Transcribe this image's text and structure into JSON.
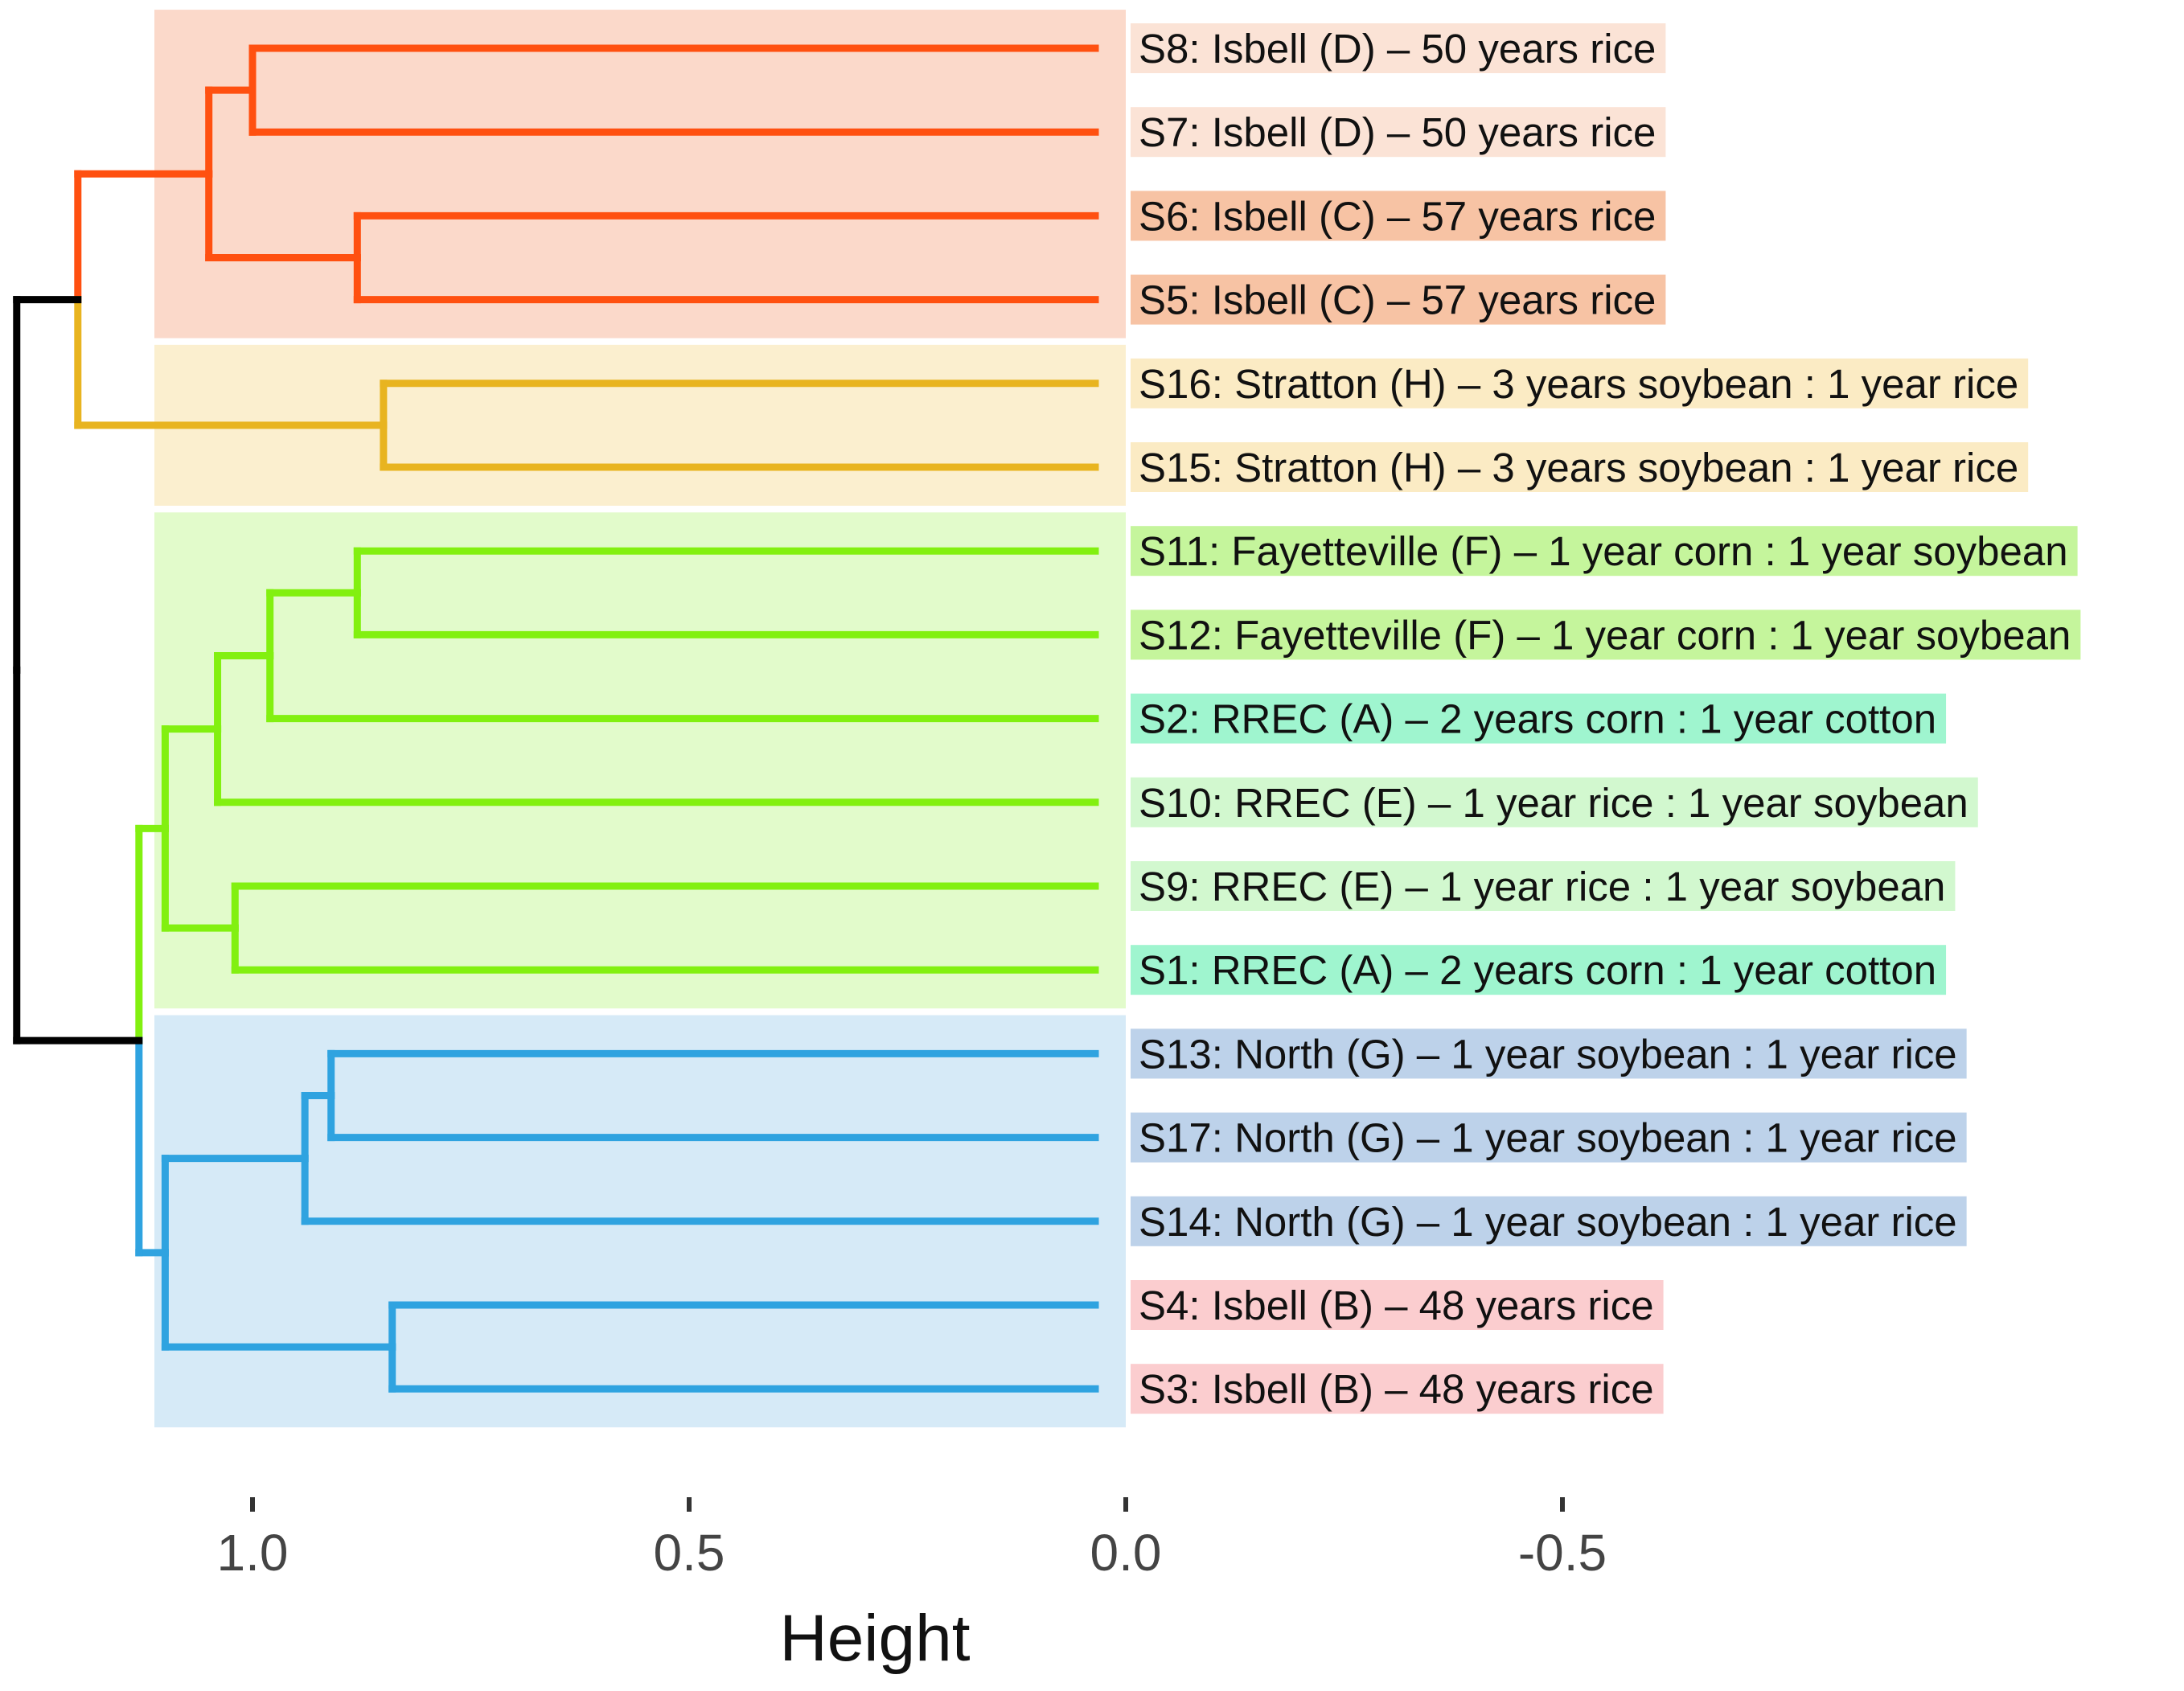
{
  "chart_data": {
    "type": "dendrogram",
    "xlabel": "Height",
    "xlim": [
      1.2,
      -1.0
    ],
    "x_ticks": [
      {
        "value": 1.0,
        "label": "1.0"
      },
      {
        "value": 0.5,
        "label": "0.5"
      },
      {
        "value": 0.0,
        "label": "0.0"
      },
      {
        "value": -0.5,
        "label": "-0.5"
      }
    ],
    "leaves": [
      {
        "id": "S8",
        "label": "S8: Isbell (D) – 50 years rice",
        "label_color": "#FBE3D6"
      },
      {
        "id": "S7",
        "label": "S7: Isbell (D) – 50 years rice",
        "label_color": "#FBE3D6"
      },
      {
        "id": "S6",
        "label": "S6: Isbell (C) – 57 years rice",
        "label_color": "#F7C3A4"
      },
      {
        "id": "S5",
        "label": "S5: Isbell (C) – 57 years rice",
        "label_color": "#F7C3A4"
      },
      {
        "id": "S16",
        "label": "S16: Stratton (H) – 3 years soybean : 1 year rice",
        "label_color": "#FBEBC4"
      },
      {
        "id": "S15",
        "label": "S15: Stratton (H) – 3 years soybean : 1 year rice",
        "label_color": "#FBEBC4"
      },
      {
        "id": "S11",
        "label": "S11: Fayetteville (F) – 1 year corn : 1 year soybean",
        "label_color": "#C5F59C"
      },
      {
        "id": "S12",
        "label": "S12: Fayetteville (F) – 1 year corn : 1 year soybean",
        "label_color": "#C5F59C"
      },
      {
        "id": "S2",
        "label": "S2: RREC (A) – 2 years corn : 1 year cotton",
        "label_color": "#9FF5CF"
      },
      {
        "id": "S10",
        "label": "S10: RREC (E) – 1 year rice : 1 year soybean",
        "label_color": "#D2F8CF"
      },
      {
        "id": "S9",
        "label": "S9: RREC (E) – 1 year rice : 1 year soybean",
        "label_color": "#D2F8CF"
      },
      {
        "id": "S1",
        "label": "S1: RREC (A) – 2 years corn : 1 year cotton",
        "label_color": "#9FF5CF"
      },
      {
        "id": "S13",
        "label": "S13: North (G) – 1 year soybean : 1 year rice",
        "label_color": "#BDD2EA"
      },
      {
        "id": "S17",
        "label": "S17: North (G) – 1 year soybean : 1 year rice",
        "label_color": "#BDD2EA"
      },
      {
        "id": "S14",
        "label": "S14: North (G) – 1 year soybean : 1 year rice",
        "label_color": "#BDD2EA"
      },
      {
        "id": "S4",
        "label": "S4: Isbell (B) – 48 years rice",
        "label_color": "#FBCDCF"
      },
      {
        "id": "S3",
        "label": "S3: Isbell (B) – 48 years rice",
        "label_color": "#FBCDCF"
      }
    ],
    "clusters": [
      {
        "name": "cluster-1",
        "color": "#FF5010",
        "fill": "#FBD9CA",
        "leaves": [
          "S8",
          "S7",
          "S6",
          "S5"
        ]
      },
      {
        "name": "cluster-2",
        "color": "#E8B420",
        "fill": "#FBEFCF",
        "leaves": [
          "S16",
          "S15"
        ]
      },
      {
        "name": "cluster-3",
        "color": "#82F010",
        "fill": "#E2FBCB",
        "leaves": [
          "S11",
          "S12",
          "S2",
          "S10",
          "S9",
          "S1"
        ]
      },
      {
        "name": "cluster-4",
        "color": "#2FA3E0",
        "fill": "#D6EAF7",
        "leaves": [
          "S13",
          "S17",
          "S14",
          "S4",
          "S3"
        ]
      }
    ],
    "root_color": "#000000",
    "merges": [
      {
        "a": "S8",
        "b": "S7",
        "height": 1.0,
        "cluster": "cluster-1"
      },
      {
        "a": "S6",
        "b": "S5",
        "height": 0.88,
        "cluster": "cluster-1"
      },
      {
        "a": "m0",
        "b": "m1",
        "height": 1.05,
        "cluster": "cluster-1"
      },
      {
        "a": "S16",
        "b": "S15",
        "height": 0.85,
        "cluster": "cluster-2"
      },
      {
        "a": "m2",
        "b": "m3",
        "height": 1.2,
        "cluster": "mixed-1-2"
      },
      {
        "a": "S11",
        "b": "S12",
        "height": 0.88,
        "cluster": "cluster-3"
      },
      {
        "a": "m5",
        "b": "S2",
        "height": 0.98,
        "cluster": "cluster-3"
      },
      {
        "a": "m6",
        "b": "S10",
        "height": 1.04,
        "cluster": "cluster-3"
      },
      {
        "a": "S9",
        "b": "S1",
        "height": 1.02,
        "cluster": "cluster-3"
      },
      {
        "a": "m7",
        "b": "m8",
        "height": 1.1,
        "cluster": "cluster-3"
      },
      {
        "a": "S13",
        "b": "S17",
        "height": 0.91,
        "cluster": "cluster-4"
      },
      {
        "a": "m10",
        "b": "S14",
        "height": 0.94,
        "cluster": "cluster-4"
      },
      {
        "a": "S4",
        "b": "S3",
        "height": 0.84,
        "cluster": "cluster-4"
      },
      {
        "a": "m11",
        "b": "m12",
        "height": 1.1,
        "cluster": "cluster-4"
      },
      {
        "a": "m9",
        "b": "m13",
        "height": 1.13,
        "cluster": "mixed-3-4"
      },
      {
        "a": "m4",
        "b": "m14",
        "height": 1.27,
        "cluster": "root"
      }
    ]
  }
}
